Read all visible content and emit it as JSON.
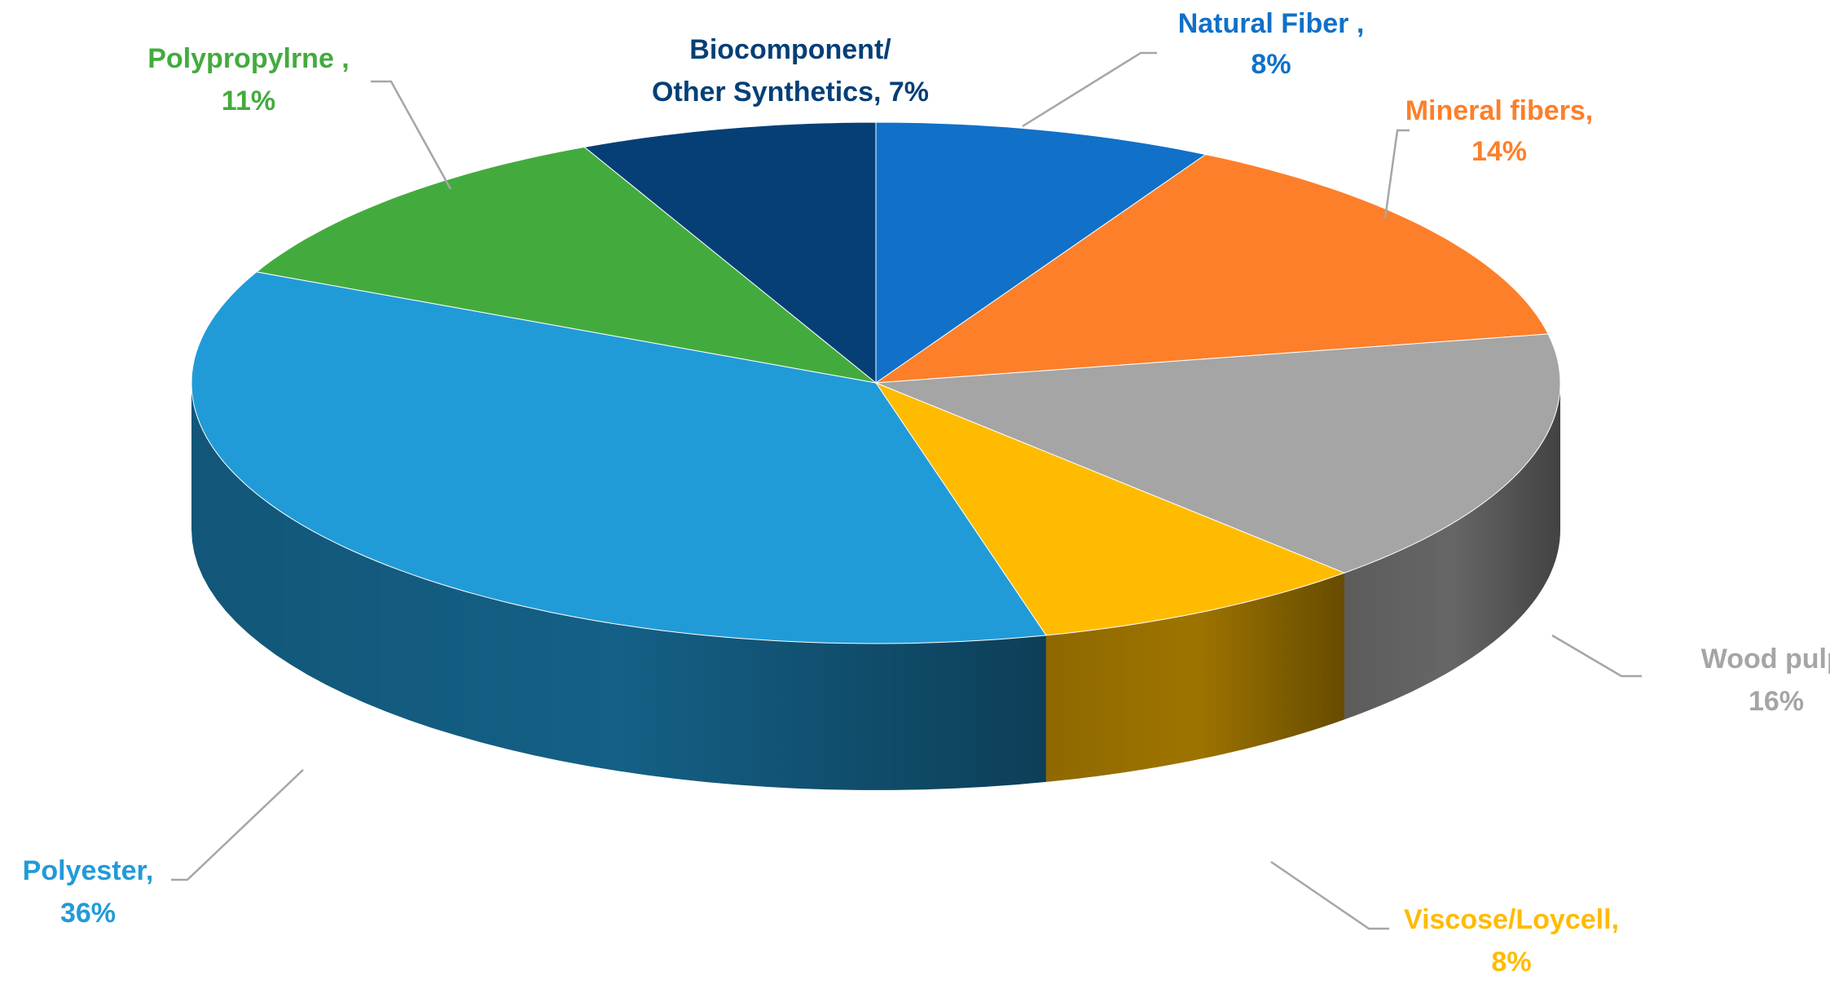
{
  "chart_data": {
    "type": "pie",
    "variant": "3d",
    "title": "",
    "legend": "none",
    "slices": [
      {
        "name": "Natural Fiber ,",
        "value": 8,
        "label": "8%",
        "color": "#1170c8"
      },
      {
        "name": "Mineral fibers,",
        "value": 14,
        "label": "14%",
        "color": "#fd7f2a"
      },
      {
        "name": "Wood pulp,",
        "value": 16,
        "label": "16%",
        "color": "#a5a5a5"
      },
      {
        "name": "Viscose/Loycell,",
        "value": 8,
        "label": "8%",
        "color": "#ffbb00"
      },
      {
        "name": "Polyester,",
        "value": 36,
        "label": "36%",
        "color": "#219bd8"
      },
      {
        "name": "Polypropylrne ,",
        "value": 11,
        "label": "11%",
        "color": "#43ab3e"
      },
      {
        "name": "Biocomponent/",
        "name_line2": "Other Synthetics, 7%",
        "value": 7,
        "label": "7%",
        "color": "#053f76"
      }
    ]
  }
}
